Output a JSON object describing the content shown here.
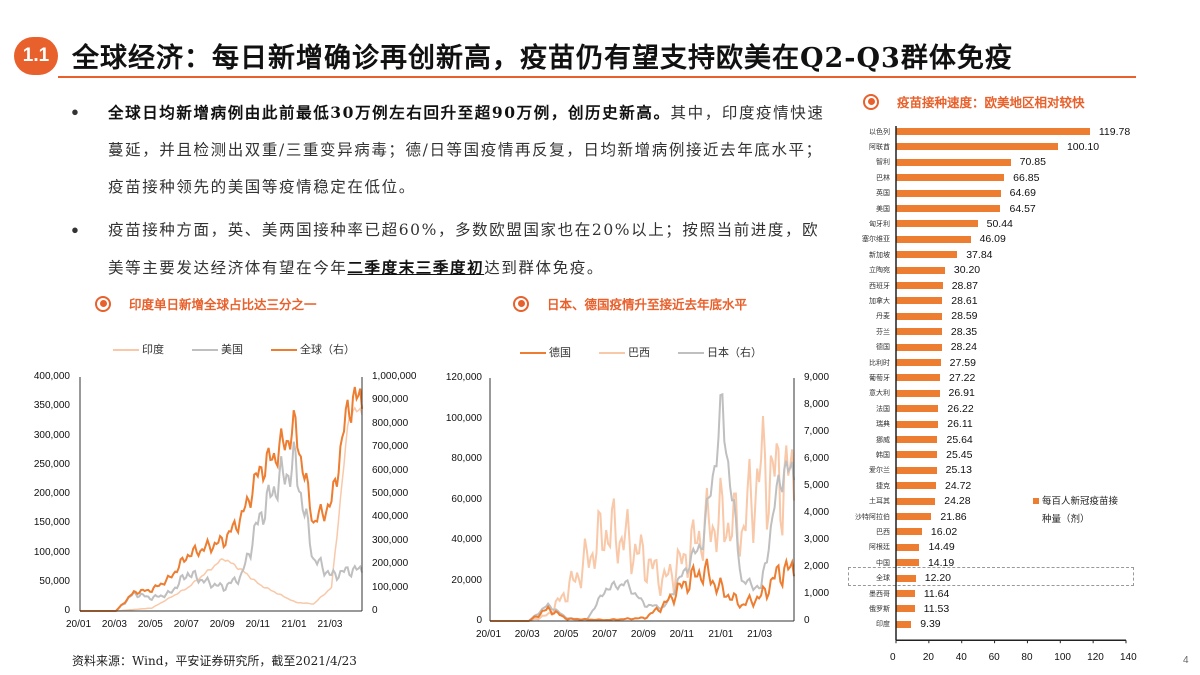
{
  "header": {
    "badge": "1.1",
    "title": "全球经济：每日新增确诊再创新高，疫苗仍有望支持欧美在Q2-Q3群体免疫"
  },
  "bullets": [
    {
      "bold": "全球日均新增病例由此前最低30万例左右回升至超90万例，创历史新高。",
      "rest": "其中，印度疫情快速蔓延，并且检测出双重/三重变异病毒；德/日等国疫情再反复，日均新增病例接近去年底水平；疫苗接种领先的美国等疫情稳定在低位。"
    },
    {
      "pre": "疫苗接种方面，英、美两国接种率已超60%，多数欧盟国家也在20%以上；按照当前进度，欧美等主要发达经济体有望在今年",
      "underline": "二季度末三季度初",
      "post": "达到群体免疫。"
    }
  ],
  "colors": {
    "accent": "#e8612c",
    "orange": "#ed7d31",
    "peach": "#f8c8a8",
    "gray": "#bfbfbf"
  },
  "chart_data": [
    {
      "type": "line",
      "title": "印度单日新增全球占比达三分之一",
      "legend": [
        "印度",
        "美国",
        "全球（右）"
      ],
      "x_ticks": [
        "20/01",
        "20/03",
        "20/05",
        "20/07",
        "20/09",
        "20/11",
        "21/01",
        "21/03"
      ],
      "y_left_ticks": [
        "0",
        "50,000",
        "100,000",
        "150,000",
        "200,000",
        "250,000",
        "300,000",
        "350,000",
        "400,000"
      ],
      "y_right_ticks": [
        "0",
        "100,000",
        "200,000",
        "300,000",
        "400,000",
        "500,000",
        "600,000",
        "700,000",
        "800,000",
        "900,000",
        "1,000,000"
      ],
      "ylim_left": [
        0,
        400000
      ],
      "ylim_right": [
        0,
        1000000
      ],
      "series": [
        {
          "name": "印度",
          "axis": "left",
          "x": [
            "20/01",
            "20/03",
            "20/05",
            "20/07",
            "20/09",
            "20/10",
            "20/11",
            "20/12",
            "21/01",
            "21/02",
            "21/03",
            "21/04"
          ],
          "values": [
            0,
            0,
            5000,
            40000,
            90000,
            70000,
            45000,
            30000,
            15000,
            12000,
            40000,
            340000
          ]
        },
        {
          "name": "美国",
          "axis": "left",
          "x": [
            "20/01",
            "20/03",
            "20/04",
            "20/05",
            "20/06",
            "20/07",
            "20/08",
            "20/09",
            "20/10",
            "20/11",
            "20/12",
            "21/01",
            "21/02",
            "21/03",
            "21/04"
          ],
          "values": [
            0,
            0,
            30000,
            22000,
            30000,
            65000,
            50000,
            40000,
            60000,
            160000,
            220000,
            250000,
            90000,
            60000,
            70000
          ]
        },
        {
          "name": "全球（右）",
          "axis": "right",
          "x": [
            "20/01",
            "20/03",
            "20/04",
            "20/05",
            "20/06",
            "20/07",
            "20/08",
            "20/09",
            "20/10",
            "20/11",
            "20/12",
            "21/01",
            "21/02",
            "21/03",
            "21/04"
          ],
          "values": [
            0,
            0,
            80000,
            90000,
            140000,
            240000,
            270000,
            300000,
            400000,
            600000,
            680000,
            780000,
            380000,
            460000,
            900000
          ]
        }
      ]
    },
    {
      "type": "line",
      "title": "日本、德国疫情升至接近去年底水平",
      "legend": [
        "德国",
        "巴西",
        "日本（右）"
      ],
      "x_ticks": [
        "20/01",
        "20/03",
        "20/05",
        "20/07",
        "20/09",
        "20/11",
        "21/01",
        "21/03"
      ],
      "y_left_ticks": [
        "0",
        "20,000",
        "40,000",
        "60,000",
        "80,000",
        "100,000",
        "120,000"
      ],
      "y_right_ticks": [
        "0",
        "1,000",
        "2,000",
        "3,000",
        "4,000",
        "5,000",
        "6,000",
        "7,000",
        "8,000",
        "9,000"
      ],
      "ylim_left": [
        0,
        120000
      ],
      "ylim_right": [
        0,
        9000
      ],
      "series": [
        {
          "name": "德国",
          "axis": "left",
          "x": [
            "20/01",
            "20/03",
            "20/04",
            "20/05",
            "20/07",
            "20/09",
            "20/10",
            "20/11",
            "20/12",
            "21/01",
            "21/02",
            "21/03",
            "21/04"
          ],
          "values": [
            0,
            0,
            6000,
            1000,
            500,
            1500,
            8000,
            18000,
            25000,
            15000,
            8000,
            12000,
            25000
          ]
        },
        {
          "name": "巴西",
          "axis": "left",
          "x": [
            "20/01",
            "20/03",
            "20/04",
            "20/05",
            "20/06",
            "20/07",
            "20/08",
            "20/09",
            "20/10",
            "20/11",
            "20/12",
            "21/01",
            "21/02",
            "21/03",
            "21/04"
          ],
          "values": [
            0,
            0,
            3000,
            15000,
            30000,
            45000,
            40000,
            30000,
            20000,
            30000,
            45000,
            50000,
            45000,
            75000,
            70000
          ]
        },
        {
          "name": "日本（右）",
          "axis": "right",
          "x": [
            "20/01",
            "20/03",
            "20/04",
            "20/05",
            "20/06",
            "20/07",
            "20/08",
            "20/09",
            "20/10",
            "20/11",
            "20/12",
            "21/01",
            "21/02",
            "21/03",
            "21/04"
          ],
          "values": [
            0,
            0,
            600,
            100,
            50,
            1200,
            1400,
            600,
            500,
            1800,
            3000,
            7800,
            1500,
            1200,
            5500
          ]
        }
      ]
    },
    {
      "type": "bar",
      "orientation": "horizontal",
      "title": "疫苗接种速度：欧美地区相对较快",
      "legend": [
        "每百人新冠疫苗接种量（剂）"
      ],
      "x_ticks": [
        "0",
        "20",
        "40",
        "60",
        "80",
        "100",
        "120",
        "140"
      ],
      "xlim": [
        0,
        140
      ],
      "highlight": "全球",
      "categories": [
        "以色列",
        "阿联酋",
        "智利",
        "巴林",
        "英国",
        "美国",
        "匈牙利",
        "塞尔维亚",
        "新加坡",
        "立陶宛",
        "西班牙",
        "加拿大",
        "丹麦",
        "芬兰",
        "德国",
        "比利时",
        "葡萄牙",
        "意大利",
        "法国",
        "瑞典",
        "挪威",
        "韩国",
        "爱尔兰",
        "捷克",
        "土耳其",
        "沙特阿拉伯",
        "巴西",
        "阿根廷",
        "中国",
        "全球",
        "墨西哥",
        "俄罗斯",
        "印度"
      ],
      "values": [
        119.78,
        100.1,
        70.85,
        66.85,
        64.69,
        64.57,
        50.44,
        46.09,
        37.84,
        30.2,
        28.87,
        28.61,
        28.59,
        28.35,
        28.24,
        27.59,
        27.22,
        26.91,
        26.22,
        26.11,
        25.64,
        25.45,
        25.13,
        24.72,
        24.28,
        21.86,
        16.02,
        14.49,
        14.19,
        12.2,
        11.64,
        11.53,
        9.39
      ],
      "value_labels": [
        "119.78",
        "100.10",
        "70.85",
        "66.85",
        "64.69",
        "64.57",
        "50.44",
        "46.09",
        "37.84",
        "30.20",
        "28.87",
        "28.61",
        "28.59",
        "28.35",
        "28.24",
        "27.59",
        "27.22",
        "26.91",
        "26.22",
        "26.11",
        "25.64",
        "25.45",
        "25.13",
        "24.72",
        "24.28",
        "21.86",
        "16.02",
        "14.49",
        "14.19",
        "12.20",
        "11.64",
        "11.53",
        "9.39"
      ]
    }
  ],
  "bar_legend": {
    "line1": "每百人新冠疫苗接",
    "line2": "种量（剂）"
  },
  "footer": {
    "source": "资料来源：Wind，平安证券研究所，截至2021/4/23",
    "page": "4"
  }
}
